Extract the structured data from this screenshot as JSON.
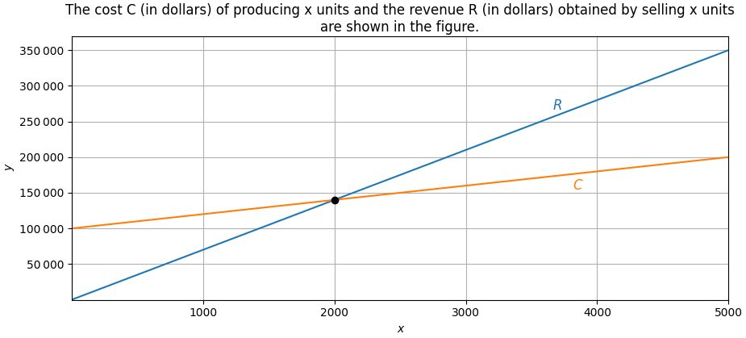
{
  "chart_data": {
    "type": "line",
    "title": "The cost C (in dollars) of producing x units and the revenue R (in dollars) obtained by selling x units are shown in the figure.",
    "x_label": "x",
    "y_label": "y",
    "x": [
      0,
      5000
    ],
    "series": [
      {
        "name": "R",
        "values": [
          0,
          350000
        ]
      },
      {
        "name": "C",
        "values": [
          100000,
          200000
        ]
      },
      {
        "type": "scatter",
        "x": [
          2000
        ],
        "values": [
          140000
        ],
        "color": "#000000"
      }
    ],
    "annotations": [
      {
        "text": "R",
        "x": 3700,
        "y": 272000
      },
      {
        "text": "C",
        "x": 3850,
        "y": 160000
      }
    ],
    "xlim": [
      0,
      5000
    ],
    "xticks": [
      1000,
      2000,
      3000,
      4000,
      5000
    ],
    "ylim": [
      0,
      370000
    ],
    "yticks": [
      {
        "value": 50000,
        "label": "50 000"
      },
      {
        "value": 100000,
        "label": "100 000"
      },
      {
        "value": 150000,
        "label": "150 000"
      },
      {
        "value": 200000,
        "label": "200 000"
      },
      {
        "value": 250000,
        "label": "250 000"
      },
      {
        "value": 300000,
        "label": "300 000"
      },
      {
        "value": 350000,
        "label": "350 000"
      }
    ],
    "grid": true
  }
}
